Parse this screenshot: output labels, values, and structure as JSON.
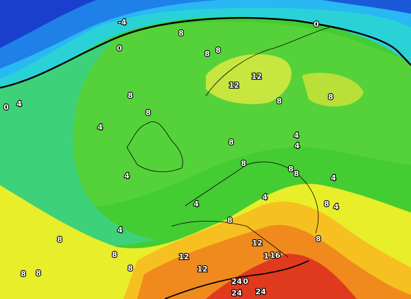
{
  "labels": [
    "-4",
    "0",
    "0",
    "8",
    "8",
    "8",
    "12",
    "12",
    "8",
    "8",
    "0",
    "4",
    "8",
    "8",
    "4",
    "8",
    "4",
    "4",
    "8",
    "8",
    "8",
    "4",
    "4",
    "4",
    "4",
    "8",
    "4",
    "8",
    "4",
    "8",
    "12",
    "8",
    "12",
    "8",
    "1",
    "16",
    "8",
    "12",
    "8",
    "8",
    "24",
    "0",
    "24",
    "24"
  ]
}
